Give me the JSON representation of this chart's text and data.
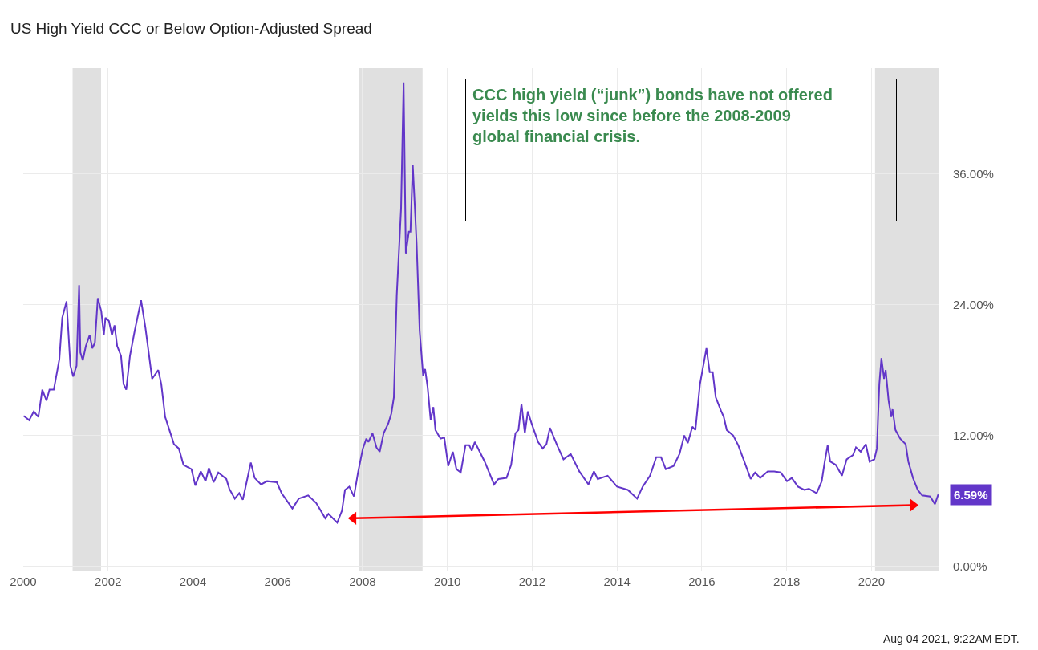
{
  "chart_data": {
    "type": "line",
    "title": "US High Yield CCC or Below Option-Adjusted Spread",
    "x": [
      "2000-01-04",
      "2000-02-21",
      "2000-04-01",
      "2000-05-10",
      "2000-06-13",
      "2000-07-19",
      "2000-08-14",
      "2000-09-20",
      "2000-11-07",
      "2000-12-02",
      "2001-01-08",
      "2001-02-10",
      "2001-03-06",
      "2001-04-04",
      "2001-04-26",
      "2001-05-07",
      "2001-05-28",
      "2001-06-23",
      "2001-07-26",
      "2001-08-18",
      "2001-09-09",
      "2001-10-04",
      "2001-11-03",
      "2001-11-25",
      "2001-12-09",
      "2002-01-08",
      "2002-02-03",
      "2002-02-25",
      "2002-03-20",
      "2002-04-22",
      "2002-05-14",
      "2002-06-06",
      "2002-07-08",
      "2002-08-18",
      "2002-10-12",
      "2002-11-18",
      "2002-12-20",
      "2003-01-15",
      "2003-03-09",
      "2003-04-04",
      "2003-05-07",
      "2003-06-13",
      "2003-07-22",
      "2003-09-02",
      "2003-10-12",
      "2003-12-20",
      "2004-01-22",
      "2004-03-09",
      "2004-04-19",
      "2004-05-18",
      "2004-06-27",
      "2004-08-07",
      "2004-10-15",
      "2004-11-10",
      "2004-12-27",
      "2005-02-03",
      "2005-03-06",
      "2005-05-14",
      "2005-06-16",
      "2005-08-10",
      "2005-10-01",
      "2005-12-24",
      "2006-02-03",
      "2006-05-07",
      "2006-07-01",
      "2006-09-20",
      "2006-11-28",
      "2007-02-14",
      "2007-03-13",
      "2007-05-28",
      "2007-07-08",
      "2007-08-03",
      "2007-09-09",
      "2007-10-19",
      "2007-11-25",
      "2008-01-04",
      "2008-02-03",
      "2008-02-21",
      "2008-03-27",
      "2008-04-30",
      "2008-05-28",
      "2008-07-01",
      "2008-08-10",
      "2008-09-05",
      "2008-09-27",
      "2008-10-22",
      "2008-11-28",
      "2008-12-20",
      "2009-01-08",
      "2009-02-03",
      "2009-02-17",
      "2009-03-09",
      "2009-04-11",
      "2009-05-07",
      "2009-06-06",
      "2009-06-23",
      "2009-07-15",
      "2009-08-10",
      "2009-09-02",
      "2009-09-20",
      "2009-11-03",
      "2009-12-05",
      "2010-01-08",
      "2010-02-17",
      "2010-03-20",
      "2010-04-26",
      "2010-06-06",
      "2010-07-08",
      "2010-07-30",
      "2010-08-25",
      "2010-11-18",
      "2011-02-07",
      "2011-03-16",
      "2011-05-25",
      "2011-07-04",
      "2011-08-10",
      "2011-09-05",
      "2011-10-01",
      "2011-10-30",
      "2011-11-25",
      "2011-12-27",
      "2012-02-21",
      "2012-04-01",
      "2012-05-03",
      "2012-06-02",
      "2012-08-03",
      "2012-09-27",
      "2012-11-28",
      "2013-02-10",
      "2013-04-30",
      "2013-06-16",
      "2013-07-19",
      "2013-10-12",
      "2014-01-01",
      "2014-04-04",
      "2014-06-23",
      "2014-08-10",
      "2014-10-12",
      "2014-12-05",
      "2015-01-15",
      "2015-02-25",
      "2015-05-03",
      "2015-06-23",
      "2015-08-03",
      "2015-09-02",
      "2015-10-12",
      "2015-11-07",
      "2015-12-16",
      "2016-02-10",
      "2016-03-09",
      "2016-04-04",
      "2016-04-30",
      "2016-06-13",
      "2016-07-08",
      "2016-08-03",
      "2016-09-27",
      "2016-11-10",
      "2017-01-01",
      "2017-02-25",
      "2017-04-04",
      "2017-05-18",
      "2017-07-22",
      "2017-09-16",
      "2017-11-10",
      "2018-01-04",
      "2018-02-14",
      "2018-04-08",
      "2018-06-02",
      "2018-07-12",
      "2018-09-16",
      "2018-10-30",
      "2018-11-25",
      "2018-12-20",
      "2019-01-11",
      "2019-02-28",
      "2019-04-22",
      "2019-06-02",
      "2019-07-26",
      "2019-08-21",
      "2019-10-01",
      "2019-11-14",
      "2019-12-16",
      "2020-01-26",
      "2020-02-17",
      "2020-03-09",
      "2020-03-27",
      "2020-04-19",
      "2020-05-03",
      "2020-05-28",
      "2020-06-20",
      "2020-07-01",
      "2020-07-26",
      "2020-09-05",
      "2020-10-22",
      "2020-11-14",
      "2020-12-24",
      "2021-02-03",
      "2021-03-13",
      "2021-05-21",
      "2021-07-01",
      "2021-07-30"
    ],
    "series": [
      {
        "color": "#6236c9",
        "values": [
          13.8,
          13.4,
          14.2,
          13.7,
          16.2,
          15.2,
          16.2,
          16.2,
          19.0,
          22.8,
          24.3,
          18.4,
          17.4,
          18.4,
          25.8,
          19.6,
          18.9,
          20.2,
          21.2,
          20.0,
          20.5,
          24.6,
          23.4,
          21.2,
          22.8,
          22.5,
          21.2,
          22.1,
          20.2,
          19.3,
          16.7,
          16.2,
          19.3,
          21.6,
          24.4,
          21.9,
          19.3,
          17.2,
          18.0,
          16.7,
          13.7,
          12.5,
          11.2,
          10.8,
          9.3,
          8.9,
          7.4,
          8.7,
          7.8,
          9.0,
          7.7,
          8.6,
          8.0,
          7.1,
          6.2,
          6.7,
          6.1,
          9.5,
          8.1,
          7.5,
          7.8,
          7.7,
          6.7,
          5.3,
          6.2,
          6.5,
          5.8,
          4.4,
          4.8,
          4.0,
          5.1,
          7.0,
          7.3,
          6.4,
          8.7,
          10.8,
          11.7,
          11.4,
          12.2,
          10.9,
          10.5,
          12.2,
          13.1,
          14.0,
          15.5,
          24.9,
          32.8,
          44.4,
          28.7,
          30.7,
          30.7,
          36.8,
          29.6,
          21.6,
          17.5,
          18.1,
          16.4,
          13.4,
          14.6,
          12.5,
          11.7,
          11.8,
          9.2,
          10.5,
          8.9,
          8.6,
          11.1,
          11.1,
          10.6,
          11.4,
          9.6,
          7.5,
          8.0,
          8.1,
          9.3,
          12.2,
          12.5,
          14.9,
          12.2,
          14.2,
          13.1,
          11.4,
          10.8,
          11.2,
          12.7,
          11.1,
          9.8,
          10.3,
          8.7,
          7.5,
          8.7,
          8.0,
          8.3,
          7.3,
          7.0,
          6.2,
          7.3,
          8.3,
          10.0,
          10.0,
          8.9,
          9.2,
          10.3,
          12.0,
          11.3,
          12.8,
          12.5,
          16.7,
          20.0,
          17.8,
          17.8,
          15.5,
          14.3,
          13.7,
          12.5,
          12.0,
          11.1,
          9.6,
          8.0,
          8.6,
          8.1,
          8.7,
          8.7,
          8.6,
          7.8,
          8.1,
          7.3,
          7.0,
          7.1,
          6.7,
          7.8,
          9.6,
          11.1,
          9.6,
          9.3,
          8.3,
          9.8,
          10.2,
          10.9,
          10.5,
          11.2,
          9.6,
          9.8,
          10.8,
          16.7,
          19.1,
          17.2,
          18.0,
          15.2,
          13.7,
          14.4,
          12.5,
          11.7,
          11.2,
          9.6,
          8.1,
          7.0,
          6.5,
          6.4,
          5.7,
          6.59
        ],
        "value_labels": [
          null,
          null,
          null,
          null,
          null,
          null,
          null,
          null,
          null,
          null,
          null,
          null,
          null,
          null,
          null,
          null,
          null,
          null,
          null,
          null,
          null,
          null,
          null,
          null,
          null,
          null,
          null,
          null,
          null,
          null,
          null,
          null,
          null,
          null,
          null,
          null,
          null,
          null,
          null,
          null,
          null,
          null,
          null,
          null,
          null,
          null,
          null,
          null,
          null,
          null,
          null,
          null,
          null,
          null,
          null,
          null,
          null,
          null,
          null,
          null,
          null,
          null,
          null,
          null,
          null,
          null,
          null,
          null,
          null,
          null,
          null,
          null,
          null,
          null,
          null,
          null,
          null,
          null,
          null,
          null,
          null,
          null,
          null,
          null,
          null,
          null,
          null,
          null,
          null,
          null,
          null,
          null,
          null,
          null,
          null,
          null,
          null,
          null,
          null,
          null,
          null,
          null,
          null,
          null,
          null,
          null,
          null,
          null,
          null,
          null,
          null,
          null,
          null,
          null,
          null,
          null,
          null,
          null,
          null,
          null,
          null,
          null,
          null,
          null,
          null,
          null,
          null,
          null,
          null,
          null,
          null,
          null,
          null,
          null,
          null,
          null,
          null,
          null,
          null,
          null,
          null,
          null,
          null,
          null,
          null,
          null,
          null,
          null,
          null,
          null,
          null,
          null,
          null,
          null,
          null,
          null,
          null,
          null,
          null,
          null,
          null,
          null,
          null,
          null,
          null,
          null,
          null,
          null,
          null,
          null,
          null,
          null,
          null,
          null,
          null,
          null,
          null,
          null,
          null,
          null,
          null,
          null,
          null,
          null,
          null,
          null,
          null,
          null,
          null,
          null,
          null,
          null,
          null,
          null,
          null,
          null,
          null,
          null,
          null,
          null,
          "6.59%"
        ]
      },
      {
        "type": "line",
        "color": "#ff0000",
        "marker": "triangle",
        "x": [
          "2007-10-15",
          "2020-12-24"
        ],
        "values": [
          4.4,
          5.6
        ]
      }
    ],
    "xlim": [
      "2000-01-01",
      "2021-08-01"
    ],
    "xticks": [
      {
        "value": "2000-01-01",
        "label": "2000"
      },
      {
        "value": "2002-01-01",
        "label": "2002"
      },
      {
        "value": "2004-01-01",
        "label": "2004"
      },
      {
        "value": "2006-01-01",
        "label": "2006"
      },
      {
        "value": "2008-01-01",
        "label": "2008"
      },
      {
        "value": "2010-01-01",
        "label": "2010"
      },
      {
        "value": "2012-01-01",
        "label": "2012"
      },
      {
        "value": "2014-01-01",
        "label": "2014"
      },
      {
        "value": "2016-01-01",
        "label": "2016"
      },
      {
        "value": "2018-01-01",
        "label": "2018"
      },
      {
        "value": "2020-01-01",
        "label": "2020"
      }
    ],
    "ylim": [
      -0.4,
      45.7
    ],
    "yticks": [
      {
        "value": 0,
        "label": "0.00%"
      },
      {
        "value": 12,
        "label": "12.00%"
      },
      {
        "value": 24,
        "label": "24.00%"
      },
      {
        "value": 36,
        "label": "36.00%"
      }
    ],
    "bands": [
      {
        "axis": "x",
        "from": "2001-03-01",
        "to": "2001-11-01",
        "color": "#e0e0e0"
      },
      {
        "axis": "x",
        "from": "2007-12-01",
        "to": "2009-06-01",
        "color": "#e0e0e0"
      },
      {
        "axis": "x",
        "from": "2020-02-01",
        "to": "2021-08-01",
        "color": "#e0e0e0"
      }
    ],
    "annotations": [
      "CCC high yield (“junk”) bonds have not offered yields this low since before the 2008-2009 global financial crisis.",
      "Aug 04 2021, 9:22AM EDT."
    ],
    "grid": true
  }
}
